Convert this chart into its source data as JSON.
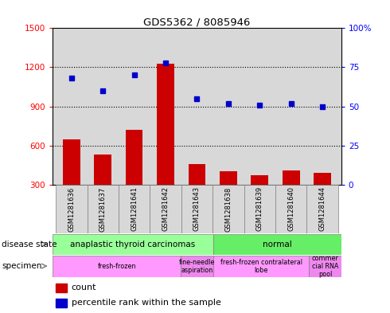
{
  "title": "GDS5362 / 8085946",
  "samples": [
    "GSM1281636",
    "GSM1281637",
    "GSM1281641",
    "GSM1281642",
    "GSM1281643",
    "GSM1281638",
    "GSM1281639",
    "GSM1281640",
    "GSM1281644"
  ],
  "counts": [
    650,
    530,
    720,
    1230,
    460,
    400,
    370,
    410,
    390
  ],
  "percentile_ranks": [
    68,
    60,
    70,
    78,
    55,
    52,
    51,
    52,
    50
  ],
  "ylim_left": [
    300,
    1500
  ],
  "ylim_right": [
    0,
    100
  ],
  "yticks_left": [
    300,
    600,
    900,
    1200,
    1500
  ],
  "yticks_right": [
    0,
    25,
    50,
    75,
    100
  ],
  "bar_color": "#cc0000",
  "dot_color": "#0000cc",
  "disease_state_groups": [
    {
      "label": "anaplastic thyroid carcinomas",
      "start": 0,
      "end": 5,
      "color": "#99ff99"
    },
    {
      "label": "normal",
      "start": 5,
      "end": 9,
      "color": "#66ee66"
    }
  ],
  "specimen_groups": [
    {
      "label": "fresh-frozen",
      "start": 0,
      "end": 4,
      "color": "#ff99ff"
    },
    {
      "label": "fine-needle\naspiration",
      "start": 4,
      "end": 5,
      "color": "#ee88ee"
    },
    {
      "label": "fresh-frozen contralateral\nlobe",
      "start": 5,
      "end": 8,
      "color": "#ff99ff"
    },
    {
      "label": "commer\ncial RNA\npool",
      "start": 8,
      "end": 9,
      "color": "#ee88ee"
    }
  ],
  "legend_count_label": "count",
  "legend_pct_label": "percentile rank within the sample",
  "disease_state_label": "disease state",
  "specimen_label": "specimen",
  "ax_background": "#d8d8d8",
  "grid_color": "#000000"
}
